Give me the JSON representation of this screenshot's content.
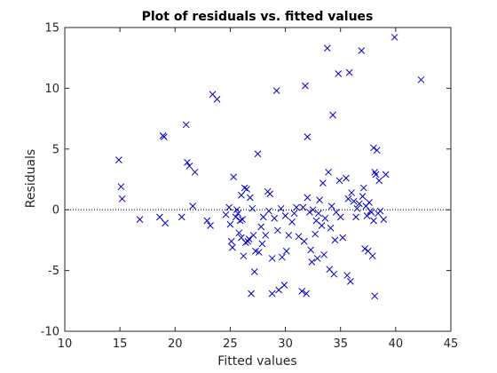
{
  "chart_data": {
    "type": "scatter",
    "title": "Plot of residuals vs. fitted values",
    "xlabel": "Fitted values",
    "ylabel": "Residuals",
    "xlim": [
      10,
      45
    ],
    "ylim": [
      -10,
      15
    ],
    "xticks": [
      10,
      15,
      20,
      25,
      30,
      35,
      40,
      45
    ],
    "yticks": [
      -10,
      -5,
      0,
      5,
      10,
      15
    ],
    "reference_line": {
      "y": 0,
      "style": "dotted"
    },
    "marker": "x",
    "marker_color": "#0000C8",
    "grid": false,
    "series": [
      {
        "points": [
          [
            14.9,
            4.1
          ],
          [
            15.1,
            1.9
          ],
          [
            15.2,
            0.9
          ],
          [
            16.8,
            -0.8
          ],
          [
            18.6,
            -0.6
          ],
          [
            18.9,
            6.1
          ],
          [
            19.0,
            6.0
          ],
          [
            19.1,
            -1.1
          ],
          [
            20.6,
            -0.6
          ],
          [
            21.0,
            7.0
          ],
          [
            21.1,
            3.9
          ],
          [
            21.3,
            3.6
          ],
          [
            21.6,
            0.3
          ],
          [
            21.8,
            3.1
          ],
          [
            22.9,
            -0.9
          ],
          [
            23.2,
            -1.3
          ],
          [
            23.4,
            9.5
          ],
          [
            23.8,
            9.1
          ],
          [
            24.6,
            -0.4
          ],
          [
            24.9,
            0.2
          ],
          [
            25.0,
            -1.2
          ],
          [
            25.1,
            -2.6
          ],
          [
            25.2,
            -3.1
          ],
          [
            25.3,
            2.7
          ],
          [
            25.5,
            -0.6
          ],
          [
            25.6,
            0.0
          ],
          [
            25.7,
            -0.3
          ],
          [
            25.8,
            -1.9
          ],
          [
            25.9,
            -0.9
          ],
          [
            26.0,
            -2.3
          ],
          [
            26.0,
            1.2
          ],
          [
            26.1,
            -0.8
          ],
          [
            26.2,
            -3.8
          ],
          [
            26.3,
            1.8
          ],
          [
            26.4,
            -2.7
          ],
          [
            26.5,
            1.7
          ],
          [
            26.6,
            -2.6
          ],
          [
            26.7,
            -2.4
          ],
          [
            26.8,
            1.0
          ],
          [
            26.9,
            -6.9
          ],
          [
            27.0,
            0.1
          ],
          [
            27.1,
            -2.1
          ],
          [
            27.2,
            -5.1
          ],
          [
            27.3,
            -3.4
          ],
          [
            27.5,
            4.6
          ],
          [
            27.6,
            -3.5
          ],
          [
            27.8,
            -1.4
          ],
          [
            27.9,
            -2.8
          ],
          [
            28.0,
            -0.6
          ],
          [
            28.2,
            -2.1
          ],
          [
            28.4,
            1.5
          ],
          [
            28.5,
            -0.1
          ],
          [
            28.6,
            1.3
          ],
          [
            28.8,
            -4.0
          ],
          [
            28.8,
            -6.9
          ],
          [
            29.0,
            -0.7
          ],
          [
            29.2,
            9.8
          ],
          [
            29.3,
            -1.7
          ],
          [
            29.4,
            -6.6
          ],
          [
            29.6,
            0.1
          ],
          [
            29.7,
            -3.9
          ],
          [
            29.9,
            -6.2
          ],
          [
            30.0,
            -0.5
          ],
          [
            30.1,
            -3.4
          ],
          [
            30.3,
            -2.1
          ],
          [
            30.6,
            -1.0
          ],
          [
            30.8,
            -0.3
          ],
          [
            31.0,
            0.2
          ],
          [
            31.2,
            -2.2
          ],
          [
            31.5,
            -6.7
          ],
          [
            31.6,
            0.2
          ],
          [
            31.7,
            -2.6
          ],
          [
            31.8,
            10.2
          ],
          [
            31.9,
            -6.9
          ],
          [
            32.0,
            6.0
          ],
          [
            32.0,
            1.0
          ],
          [
            32.2,
            -0.2
          ],
          [
            32.3,
            -3.3
          ],
          [
            32.4,
            -4.3
          ],
          [
            32.5,
            0.0
          ],
          [
            32.7,
            -2.0
          ],
          [
            32.8,
            -0.9
          ],
          [
            32.9,
            -4.0
          ],
          [
            33.0,
            -0.3
          ],
          [
            33.1,
            0.8
          ],
          [
            33.3,
            -1.3
          ],
          [
            33.4,
            2.2
          ],
          [
            33.5,
            -3.7
          ],
          [
            33.6,
            -0.7
          ],
          [
            33.8,
            13.3
          ],
          [
            33.9,
            3.1
          ],
          [
            34.0,
            -4.9
          ],
          [
            34.1,
            -1.5
          ],
          [
            34.2,
            0.3
          ],
          [
            34.3,
            7.8
          ],
          [
            34.4,
            -5.3
          ],
          [
            34.5,
            -2.5
          ],
          [
            34.6,
            -0.2
          ],
          [
            34.8,
            11.2
          ],
          [
            34.9,
            2.4
          ],
          [
            35.0,
            -0.6
          ],
          [
            35.2,
            -2.3
          ],
          [
            35.5,
            2.6
          ],
          [
            35.6,
            -5.4
          ],
          [
            35.7,
            0.9
          ],
          [
            35.8,
            11.3
          ],
          [
            35.9,
            -5.9
          ],
          [
            36.0,
            1.4
          ],
          [
            36.2,
            0.7
          ],
          [
            36.4,
            -0.6
          ],
          [
            36.5,
            0.1
          ],
          [
            36.7,
            0.5
          ],
          [
            36.9,
            13.1
          ],
          [
            37.0,
            1.1
          ],
          [
            37.1,
            1.8
          ],
          [
            37.2,
            -3.2
          ],
          [
            37.3,
            0.3
          ],
          [
            37.4,
            -0.5
          ],
          [
            37.5,
            -3.4
          ],
          [
            37.6,
            0.6
          ],
          [
            37.7,
            -0.1
          ],
          [
            37.8,
            -0.2
          ],
          [
            37.9,
            -3.8
          ],
          [
            38.0,
            5.1
          ],
          [
            38.0,
            -0.9
          ],
          [
            38.1,
            3.1
          ],
          [
            38.2,
            2.9
          ],
          [
            38.3,
            4.9
          ],
          [
            38.4,
            -0.3
          ],
          [
            38.5,
            2.4
          ],
          [
            38.6,
            -0.1
          ],
          [
            38.9,
            -0.8
          ],
          [
            39.1,
            2.9
          ],
          [
            38.1,
            -7.1
          ],
          [
            39.9,
            14.2
          ],
          [
            42.3,
            10.7
          ]
        ]
      }
    ]
  }
}
